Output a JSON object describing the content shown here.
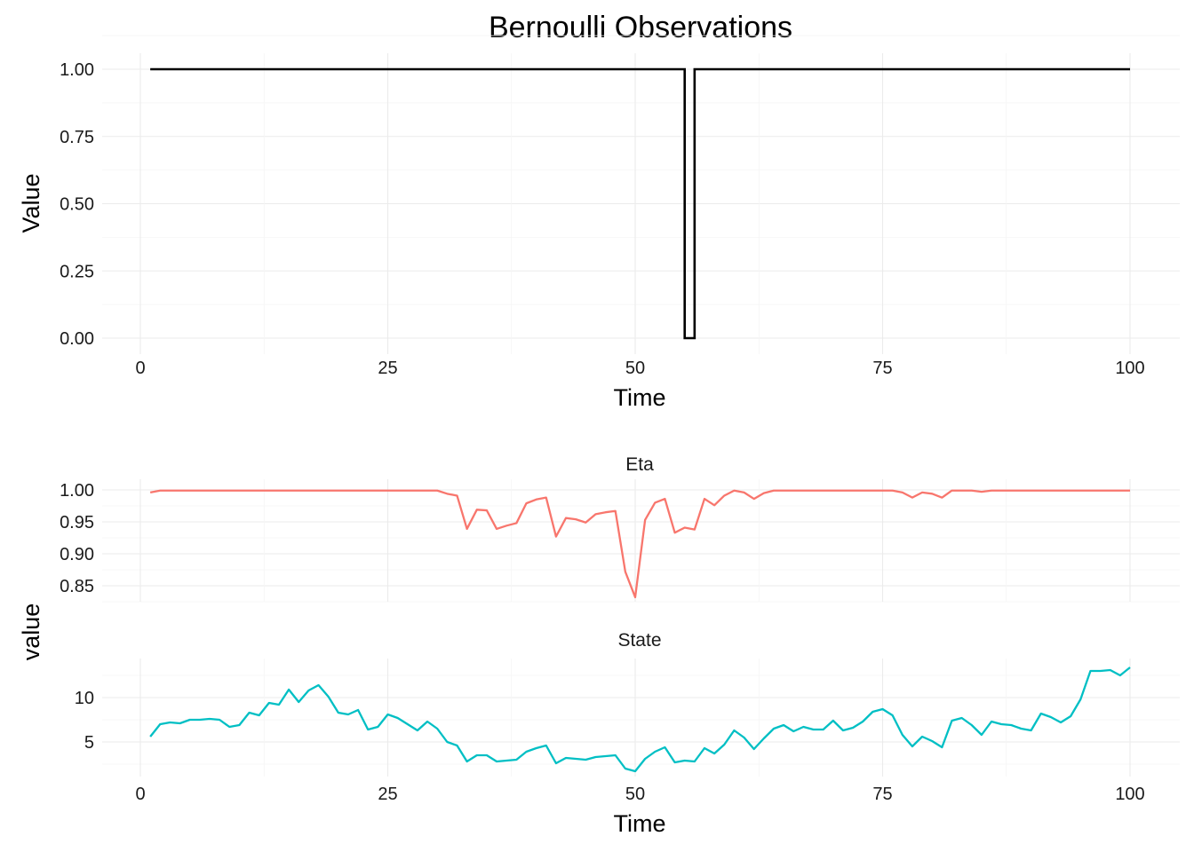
{
  "chart_data": [
    {
      "type": "line",
      "title": "Bernoulli Observations",
      "xlabel": "Time",
      "ylabel": "Value",
      "xlim": [
        0,
        100
      ],
      "ylim": [
        0,
        1
      ],
      "xticks": [
        0,
        25,
        50,
        75,
        100
      ],
      "yticks": [
        "0.00",
        "0.25",
        "0.50",
        "0.75",
        "1.00"
      ],
      "line_shape": "step",
      "grid": true,
      "color": "#000000",
      "series": [
        {
          "x": [
            1,
            2,
            3,
            4,
            5,
            6,
            7,
            8,
            9,
            10,
            11,
            12,
            13,
            14,
            15,
            16,
            17,
            18,
            19,
            20,
            21,
            22,
            23,
            24,
            25,
            26,
            27,
            28,
            29,
            30,
            31,
            32,
            33,
            34,
            35,
            36,
            37,
            38,
            39,
            40,
            41,
            42,
            43,
            44,
            45,
            46,
            47,
            48,
            49,
            50,
            51,
            52,
            53,
            54,
            55,
            56,
            57,
            58,
            59,
            60,
            61,
            62,
            63,
            64,
            65,
            66,
            67,
            68,
            69,
            70,
            71,
            72,
            73,
            74,
            75,
            76,
            77,
            78,
            79,
            80,
            81,
            82,
            83,
            84,
            85,
            86,
            87,
            88,
            89,
            90,
            91,
            92,
            93,
            94,
            95,
            96,
            97,
            98,
            99,
            100
          ],
          "values": [
            1,
            1,
            1,
            1,
            1,
            1,
            1,
            1,
            1,
            1,
            1,
            1,
            1,
            1,
            1,
            1,
            1,
            1,
            1,
            1,
            1,
            1,
            1,
            1,
            1,
            1,
            1,
            1,
            1,
            1,
            1,
            1,
            1,
            1,
            1,
            1,
            1,
            1,
            1,
            1,
            1,
            1,
            1,
            1,
            1,
            1,
            1,
            1,
            1,
            1,
            1,
            1,
            1,
            1,
            0,
            1,
            1,
            1,
            1,
            1,
            1,
            1,
            1,
            1,
            1,
            1,
            1,
            1,
            1,
            1,
            1,
            1,
            1,
            1,
            1,
            1,
            1,
            1,
            1,
            1,
            1,
            1,
            1,
            1,
            1,
            1,
            1,
            1,
            1,
            1,
            1,
            1,
            1,
            1,
            1,
            1,
            1,
            1,
            1,
            1
          ]
        }
      ]
    },
    {
      "type": "line",
      "xlabel": "Time",
      "ylabel": "value",
      "xlim": [
        0,
        100
      ],
      "xticks": [
        0,
        25,
        50,
        75,
        100
      ],
      "grid": true,
      "facets": [
        {
          "label": "Eta",
          "color": "#F8766D",
          "ylim": [
            0.83,
            1.0
          ],
          "yticks": [
            "0.85",
            "0.90",
            "0.95",
            "1.00"
          ],
          "x": [
            1,
            2,
            3,
            4,
            5,
            6,
            7,
            8,
            9,
            10,
            11,
            12,
            13,
            14,
            15,
            16,
            17,
            18,
            19,
            20,
            21,
            22,
            23,
            24,
            25,
            26,
            27,
            28,
            29,
            30,
            31,
            32,
            33,
            34,
            35,
            36,
            37,
            38,
            39,
            40,
            41,
            42,
            43,
            44,
            45,
            46,
            47,
            48,
            49,
            50,
            51,
            52,
            53,
            54,
            55,
            56,
            57,
            58,
            59,
            60,
            61,
            62,
            63,
            64,
            65,
            66,
            67,
            68,
            69,
            70,
            71,
            72,
            73,
            74,
            75,
            76,
            77,
            78,
            79,
            80,
            81,
            82,
            83,
            84,
            85,
            86,
            87,
            88,
            89,
            90,
            91,
            92,
            93,
            94,
            95,
            96,
            97,
            98,
            99,
            100
          ],
          "values": [
            0.996,
            0.999,
            0.999,
            0.999,
            0.999,
            0.999,
            0.999,
            0.999,
            0.999,
            0.999,
            0.999,
            0.999,
            0.999,
            0.999,
            0.999,
            0.999,
            0.999,
            0.999,
            0.999,
            0.999,
            0.999,
            0.999,
            0.999,
            0.999,
            0.999,
            0.999,
            0.999,
            0.999,
            0.999,
            0.999,
            0.994,
            0.991,
            0.939,
            0.969,
            0.968,
            0.939,
            0.944,
            0.948,
            0.979,
            0.985,
            0.988,
            0.927,
            0.956,
            0.954,
            0.949,
            0.962,
            0.965,
            0.967,
            0.872,
            0.832,
            0.953,
            0.98,
            0.986,
            0.933,
            0.941,
            0.938,
            0.986,
            0.976,
            0.991,
            0.999,
            0.996,
            0.986,
            0.995,
            0.999,
            0.999,
            0.999,
            0.999,
            0.999,
            0.999,
            0.999,
            0.999,
            0.999,
            0.999,
            0.999,
            0.999,
            0.999,
            0.996,
            0.988,
            0.996,
            0.994,
            0.988,
            0.999,
            0.999,
            0.999,
            0.997,
            0.999,
            0.999,
            0.999,
            0.999,
            0.999,
            0.999,
            0.999,
            0.999,
            0.999,
            0.999,
            0.999,
            0.999,
            0.999,
            0.999,
            0.999
          ]
        },
        {
          "label": "State",
          "color": "#00BFC4",
          "ylim": [
            1.7,
            13.5
          ],
          "yticks": [
            "5",
            "10"
          ],
          "x": [
            1,
            2,
            3,
            4,
            5,
            6,
            7,
            8,
            9,
            10,
            11,
            12,
            13,
            14,
            15,
            16,
            17,
            18,
            19,
            20,
            21,
            22,
            23,
            24,
            25,
            26,
            27,
            28,
            29,
            30,
            31,
            32,
            33,
            34,
            35,
            36,
            37,
            38,
            39,
            40,
            41,
            42,
            43,
            44,
            45,
            46,
            47,
            48,
            49,
            50,
            51,
            52,
            53,
            54,
            55,
            56,
            57,
            58,
            59,
            60,
            61,
            62,
            63,
            64,
            65,
            66,
            67,
            68,
            69,
            70,
            71,
            72,
            73,
            74,
            75,
            76,
            77,
            78,
            79,
            80,
            81,
            82,
            83,
            84,
            85,
            86,
            87,
            88,
            89,
            90,
            91,
            92,
            93,
            94,
            95,
            96,
            97,
            98,
            99,
            100
          ],
          "values": [
            5.6,
            7.0,
            7.2,
            7.1,
            7.5,
            7.5,
            7.6,
            7.5,
            6.7,
            6.9,
            8.3,
            8.0,
            9.4,
            9.2,
            10.9,
            9.5,
            10.8,
            11.4,
            10.1,
            8.3,
            8.1,
            8.6,
            6.4,
            6.7,
            8.1,
            7.7,
            7.0,
            6.3,
            7.3,
            6.5,
            5.0,
            4.6,
            2.8,
            3.5,
            3.5,
            2.8,
            2.9,
            3.0,
            3.9,
            4.3,
            4.6,
            2.6,
            3.2,
            3.1,
            3.0,
            3.3,
            3.4,
            3.5,
            2.0,
            1.7,
            3.1,
            3.9,
            4.4,
            2.7,
            2.9,
            2.8,
            4.3,
            3.7,
            4.7,
            6.3,
            5.5,
            4.2,
            5.4,
            6.5,
            6.9,
            6.2,
            6.7,
            6.4,
            6.4,
            7.4,
            6.3,
            6.6,
            7.3,
            8.4,
            8.7,
            8.0,
            5.8,
            4.5,
            5.6,
            5.1,
            4.4,
            7.4,
            7.7,
            6.9,
            5.8,
            7.3,
            7.0,
            6.9,
            6.5,
            6.3,
            8.2,
            7.8,
            7.2,
            7.9,
            9.8,
            13.0,
            13.0,
            13.1,
            12.5,
            13.4
          ]
        }
      ]
    }
  ]
}
